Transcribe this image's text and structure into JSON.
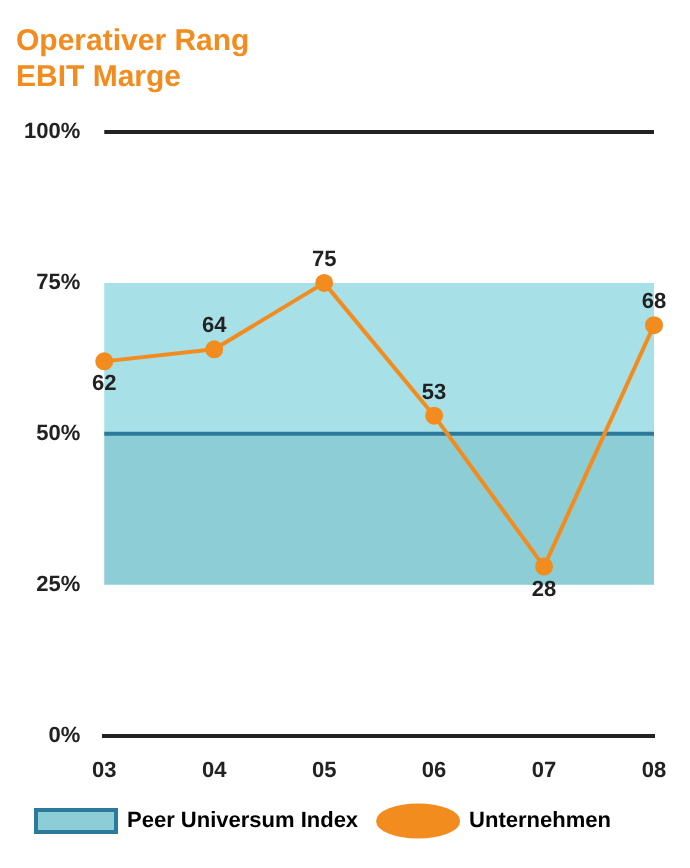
{
  "chart_data": {
    "type": "line",
    "title": "Operativer Rang",
    "subtitle": "EBIT Marge",
    "categories": [
      "03",
      "04",
      "05",
      "06",
      "07",
      "08"
    ],
    "ylim": [
      0,
      100
    ],
    "yticks": [
      {
        "value": 0,
        "label": "0%"
      },
      {
        "value": 25,
        "label": "25%"
      },
      {
        "value": 50,
        "label": "50%"
      },
      {
        "value": 75,
        "label": "75%"
      },
      {
        "value": 100,
        "label": "100%"
      }
    ],
    "grid": false,
    "legend": "bottom",
    "marker": "circle",
    "line_style": "solid",
    "bands": [
      {
        "axis": "y",
        "from": 25,
        "to": 50,
        "color": "#8ccdd6"
      },
      {
        "axis": "y",
        "from": 50,
        "to": 75,
        "color": "#a8e0e7"
      }
    ],
    "series": [
      {
        "name": "Peer Universum Index",
        "color": "#2b7a9b",
        "values": [
          50,
          50,
          50,
          50,
          50,
          50
        ],
        "marker": "none"
      },
      {
        "name": "Unternehmen",
        "color": "#f28c1e",
        "values": [
          62,
          64,
          75,
          53,
          28,
          68
        ],
        "value_labels": [
          "62",
          "64",
          "75",
          "53",
          "28",
          "68"
        ]
      }
    ]
  }
}
